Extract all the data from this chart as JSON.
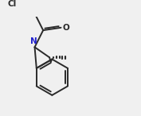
{
  "background": "#f0f0f0",
  "line_color": "#2a2a2a",
  "N_color": "#2020cc",
  "O_color": "#2a2a2a",
  "Cl_color": "#2a2a2a",
  "figsize": [
    1.77,
    1.46
  ],
  "dpi": 100,
  "xlim": [
    0,
    10
  ],
  "ylim": [
    0,
    8.5
  ],
  "lw": 1.4,
  "fs": 7.5
}
